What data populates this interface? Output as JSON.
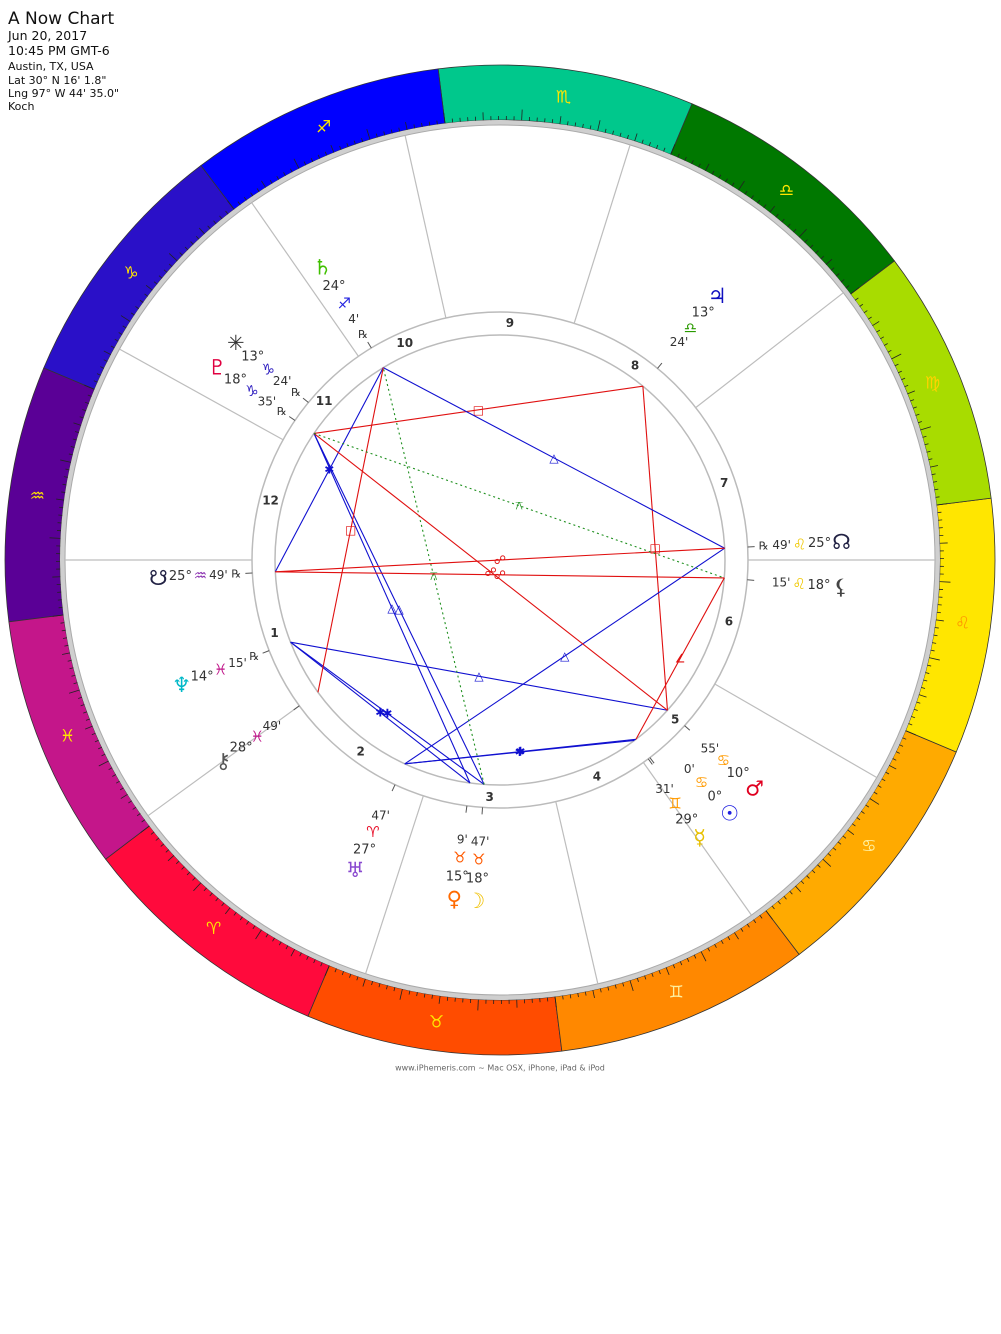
{
  "header": {
    "title": "A Now Chart",
    "date": "Jun 20, 2017",
    "time": "10:45 PM GMT-6",
    "place": "Austin, TX, USA",
    "lat": "Lat 30° N 16' 1.8\"",
    "lng": "Lng 97° W 44' 35.0\"",
    "system": "Koch"
  },
  "ascendant": 325.82,
  "signs": [
    {
      "glyph": "♈",
      "color": "#ff0a3c",
      "glyph_color": "#ffe600",
      "ink": "#e8102a"
    },
    {
      "glyph": "♉",
      "color": "#ff4c00",
      "glyph_color": "#ffe600",
      "ink": "#ff5a00"
    },
    {
      "glyph": "♊",
      "color": "#ff8800",
      "glyph_color": "#fff0a0",
      "ink": "#ff9a00"
    },
    {
      "glyph": "♋",
      "color": "#ffaa00",
      "glyph_color": "#fff0a0",
      "ink": "#ff9a00"
    },
    {
      "glyph": "♌",
      "color": "#ffe600",
      "glyph_color": "#ff9900",
      "ink": "#f0c800"
    },
    {
      "glyph": "♍",
      "color": "#a8dc00",
      "glyph_color": "#ffd200",
      "ink": "#88b800"
    },
    {
      "glyph": "♎",
      "color": "#007800",
      "glyph_color": "#ffe600",
      "ink": "#2a9a00"
    },
    {
      "glyph": "♏",
      "color": "#00c88c",
      "glyph_color": "#ffe600",
      "ink": "#00a070"
    },
    {
      "glyph": "♐",
      "color": "#0000ff",
      "glyph_color": "#ffe600",
      "ink": "#2020e0"
    },
    {
      "glyph": "♑",
      "color": "#2a10c8",
      "glyph_color": "#ffe600",
      "ink": "#3020c0"
    },
    {
      "glyph": "♒",
      "color": "#5a0096",
      "glyph_color": "#ffe600",
      "ink": "#8a30b0"
    },
    {
      "glyph": "♓",
      "color": "#c4168a",
      "glyph_color": "#ffe600",
      "ink": "#c0168a"
    }
  ],
  "houses": [
    1,
    2,
    3,
    4,
    5,
    6,
    7,
    8,
    9,
    10,
    11,
    12
  ],
  "planets": [
    {
      "glyph": "☉",
      "color": "#2020e0",
      "longitude": 90.0,
      "degree": "0°",
      "sign": "♋",
      "minute": "0'"
    },
    {
      "glyph": "☽",
      "color": "#f0c000",
      "longitude": 48.78,
      "degree": "18°",
      "sign": "♉",
      "minute": "47'"
    },
    {
      "glyph": "☿",
      "color": "#e8c000",
      "longitude": 89.52,
      "degree": "29°",
      "sign": "♊",
      "minute": "31'"
    },
    {
      "glyph": "♀",
      "color": "#ff6a00",
      "longitude": 45.15,
      "degree": "15°",
      "sign": "♉",
      "minute": "9'"
    },
    {
      "glyph": "♂",
      "color": "#e00020",
      "longitude": 100.92,
      "degree": "10°",
      "sign": "♋",
      "minute": "55'"
    },
    {
      "glyph": "♃",
      "color": "#1010c0",
      "longitude": 193.4,
      "degree": "13°",
      "sign": "♎",
      "minute": "24'"
    },
    {
      "glyph": "♄",
      "color": "#40c000",
      "longitude": 264.07,
      "degree": "24°",
      "sign": "♐",
      "minute": "4'",
      "rx": "℞"
    },
    {
      "glyph": "♅",
      "color": "#8a4ad0",
      "longitude": 27.78,
      "degree": "27°",
      "sign": "♈",
      "minute": "47'"
    },
    {
      "glyph": "♆",
      "color": "#00b8c8",
      "longitude": 344.25,
      "degree": "14°",
      "sign": "♓",
      "minute": "15'",
      "rx": "℞"
    },
    {
      "glyph": "♇",
      "color": "#e00040",
      "longitude": 288.58,
      "degree": "18°",
      "sign": "♑",
      "minute": "35'",
      "rx": "℞"
    },
    {
      "glyph": "☊",
      "color": "#222244",
      "longitude": 145.82,
      "degree": "25°",
      "sign": "♌",
      "minute": "49'",
      "rx": "℞"
    },
    {
      "glyph": "☋",
      "color": "#222244",
      "longitude": 325.82,
      "degree": "25°",
      "sign": "♒",
      "minute": "49'",
      "rx": "℞"
    },
    {
      "glyph": "⚷",
      "color": "#555555",
      "longitude": 358.82,
      "degree": "28°",
      "sign": "♓",
      "minute": "49'"
    },
    {
      "glyph": "✳",
      "color": "#333333",
      "longitude": 283.4,
      "degree": "13°",
      "sign": "♑",
      "minute": "24'",
      "rx": "℞"
    },
    {
      "glyph": "⚸",
      "color": "#444444",
      "longitude": 138.25,
      "degree": "18°",
      "sign": "♌",
      "minute": "15'"
    }
  ],
  "aspects": [
    {
      "a": 4,
      "b": 5,
      "glyph": "□",
      "color": "#e01010"
    },
    {
      "a": 4,
      "b": 8,
      "glyph": "△",
      "color": "#1010d0"
    },
    {
      "a": 2,
      "b": 7,
      "glyph": "✱",
      "color": "#1010d0"
    },
    {
      "a": 0,
      "b": 7,
      "glyph": "✱",
      "color": "#1010d0"
    },
    {
      "a": 1,
      "b": 8,
      "glyph": "✱",
      "color": "#1010d0"
    },
    {
      "a": 1,
      "b": 9,
      "glyph": "△",
      "color": "#1010d0"
    },
    {
      "a": 3,
      "b": 9,
      "glyph": "△",
      "color": "#1010d0"
    },
    {
      "a": 3,
      "b": 8,
      "glyph": "✱",
      "color": "#1010d0"
    },
    {
      "a": 5,
      "b": 9,
      "glyph": "□",
      "color": "#e01010"
    },
    {
      "a": 6,
      "b": 10,
      "glyph": "△",
      "color": "#1010d0"
    },
    {
      "a": 6,
      "b": 11,
      "glyph": "✱",
      "color": "#1010d0"
    },
    {
      "a": 6,
      "b": 12,
      "glyph": "□",
      "color": "#e01010"
    },
    {
      "a": 7,
      "b": 10,
      "glyph": "△",
      "color": "#1010d0"
    },
    {
      "a": 1,
      "b": 6,
      "glyph": "⚻",
      "color": "#209020"
    },
    {
      "a": 10,
      "b": 11,
      "glyph": "☍",
      "color": "#e01010"
    },
    {
      "a": 14,
      "b": 11,
      "glyph": "☍",
      "color": "#e01010"
    },
    {
      "a": 4,
      "b": 9,
      "glyph": "☍",
      "color": "#e01010"
    },
    {
      "a": 0,
      "b": 14,
      "glyph": "∠",
      "color": "#e01010"
    },
    {
      "a": 9,
      "b": 14,
      "glyph": "⚻",
      "color": "#209020"
    }
  ],
  "footer": "www.iPhemeris.com ~ Mac OSX, iPhone, iPad & iPod"
}
